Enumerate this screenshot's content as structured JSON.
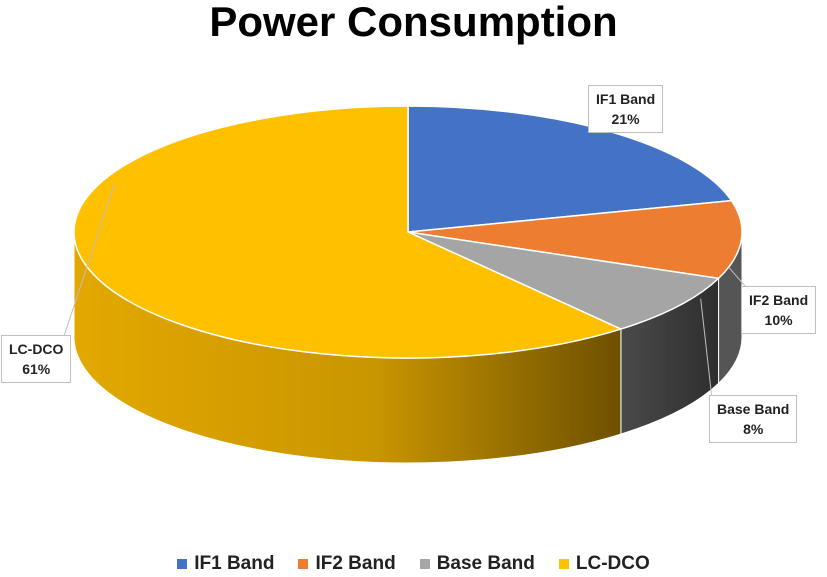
{
  "chart_data": {
    "type": "pie",
    "title": "Power Consumption",
    "categories": [
      "IF1 Band",
      "IF2 Band",
      "Base Band",
      "LC-DCO"
    ],
    "values": [
      21,
      10,
      8,
      61
    ],
    "data_labels": [
      {
        "name": "IF1 Band",
        "value": "21%"
      },
      {
        "name": "IF2 Band",
        "value": "10%"
      },
      {
        "name": "Base Band",
        "value": "8%"
      },
      {
        "name": "LC-DCO",
        "value": "61%"
      }
    ],
    "colors": [
      "#4472C4",
      "#ED7D31",
      "#A5A5A5",
      "#FFC000"
    ],
    "legend_position": "bottom",
    "style": "3d-pie"
  }
}
